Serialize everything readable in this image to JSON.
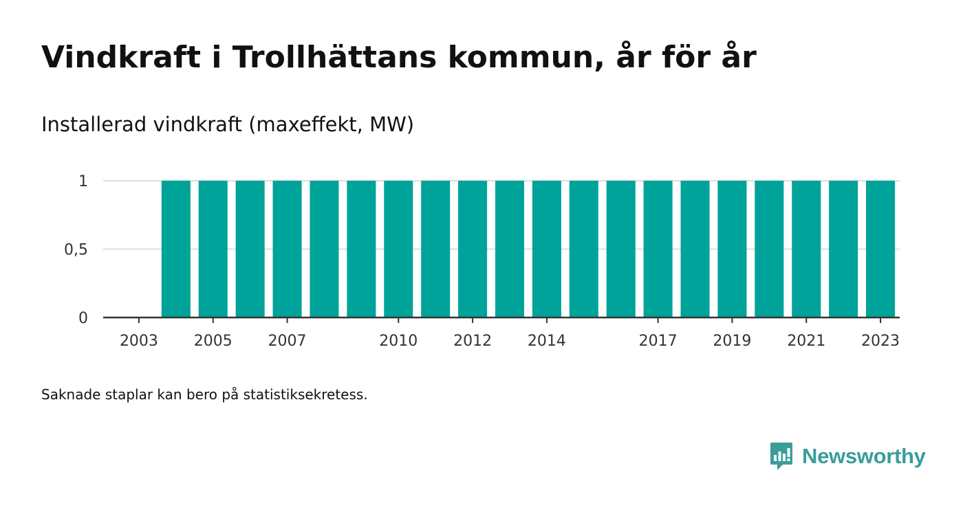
{
  "title": "Vindkraft i Trollhättans kommun, år för år",
  "subtitle": "Installerad vindkraft (maxeffekt, MW)",
  "footnote": "Saknade staplar kan bero på statistiksekretess.",
  "brand": {
    "name": "Newsworthy",
    "icon": "newsworthy-logo-icon",
    "color": "#3a9d99"
  },
  "colors": {
    "bar": "#00a39a",
    "grid": "#dddddd",
    "axis": "#333333"
  },
  "chart_data": {
    "type": "bar",
    "title": "Vindkraft i Trollhättans kommun, år för år",
    "ylabel": "Installerad vindkraft (maxeffekt, MW)",
    "xlabel": "",
    "categories": [
      "2003",
      "2004",
      "2005",
      "2006",
      "2007",
      "2008",
      "2009",
      "2010",
      "2011",
      "2012",
      "2013",
      "2014",
      "2015",
      "2016",
      "2017",
      "2018",
      "2019",
      "2020",
      "2021",
      "2022",
      "2023"
    ],
    "values": [
      null,
      1,
      1,
      1,
      1,
      1,
      1,
      1,
      1,
      1,
      1,
      1,
      1,
      1,
      1,
      1,
      1,
      1,
      1,
      1,
      1
    ],
    "ylim": [
      0,
      1
    ],
    "yticks": [
      0,
      0.5,
      1
    ],
    "ytick_labels": [
      "0",
      "0,5",
      "1"
    ],
    "xtick_labels": [
      "2003",
      "2005",
      "2007",
      "2010",
      "2012",
      "2014",
      "2017",
      "2019",
      "2021",
      "2023"
    ],
    "grid": true,
    "legend": "none"
  }
}
